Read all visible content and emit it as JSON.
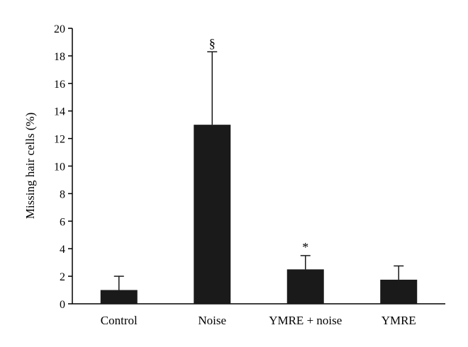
{
  "chart_data": {
    "type": "bar",
    "title": "",
    "xlabel": "",
    "ylabel": "Missing hair cells (%)",
    "ylim": [
      0,
      20
    ],
    "yticks": [
      0,
      2,
      4,
      6,
      8,
      10,
      12,
      14,
      16,
      18,
      20
    ],
    "categories": [
      "Control",
      "Noise",
      "YMRE + noise",
      "YMRE"
    ],
    "values": [
      1.0,
      13.0,
      2.5,
      1.75
    ],
    "error_upper": [
      1.0,
      5.3,
      1.0,
      1.0
    ],
    "annotations": [
      "",
      "§",
      "*",
      ""
    ],
    "grid": false,
    "legend": "none",
    "bar_color": "#1a1a1a"
  }
}
